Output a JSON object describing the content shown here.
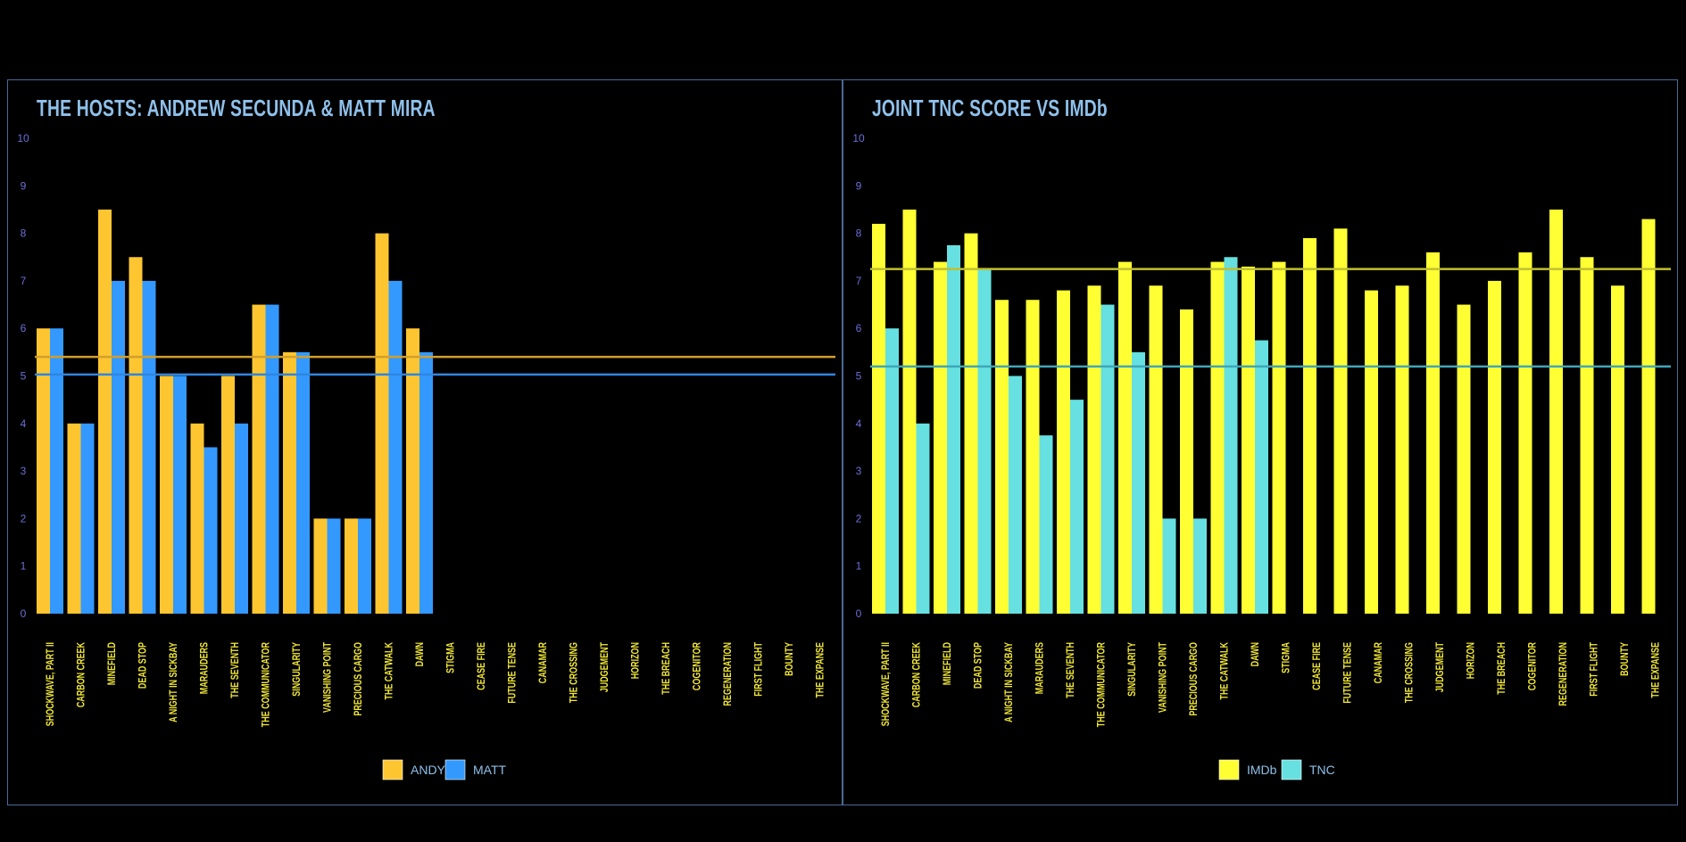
{
  "chart_data": [
    {
      "type": "bar",
      "title": "THE HOSTS: ANDREW SECUNDA & MATT MIRA",
      "categories": [
        "SHOCKWAVE, PART II",
        "CARBON CREEK",
        "MINEFIELD",
        "DEAD STOP",
        "A NIGHT IN SICKBAY",
        "MARAUDERS",
        "THE SEVENTH",
        "THE COMMUNICATOR",
        "SINGULARITY",
        "VANISHING POINT",
        "PRECIOUS CARGO",
        "THE CATWALK",
        "DAWN",
        "STIGMA",
        "CEASE FIRE",
        "FUTURE TENSE",
        "CANAMAR",
        "THE CROSSING",
        "JUDGEMENT",
        "HORIZON",
        "THE BREACH",
        "COGENITOR",
        "REGENERATION",
        "FIRST FLIGHT",
        "BOUNTY",
        "THE EXPANSE"
      ],
      "yticks": [
        "0",
        "1",
        "2",
        "3",
        "4",
        "5",
        "6",
        "7",
        "8",
        "9",
        "10"
      ],
      "ylim": [
        0,
        10
      ],
      "series": [
        {
          "name": "ANDY",
          "color": "#fdc631",
          "values": [
            6,
            4,
            8.5,
            7.5,
            5,
            4,
            5,
            6.5,
            5.5,
            2,
            2,
            8,
            6,
            null,
            null,
            null,
            null,
            null,
            null,
            null,
            null,
            null,
            null,
            null,
            null,
            null
          ]
        },
        {
          "name": "MATT",
          "color": "#3399ff",
          "values": [
            6,
            4,
            7,
            7,
            5,
            3.5,
            4,
            6.5,
            5.5,
            2,
            2,
            7,
            5.5,
            null,
            null,
            null,
            null,
            null,
            null,
            null,
            null,
            null,
            null,
            null,
            null,
            null
          ]
        }
      ],
      "reference_lines": [
        {
          "series": "ANDY",
          "value": 5.4,
          "color": "#d29e2a"
        },
        {
          "series": "MATT",
          "value": 5.03,
          "color": "#2f86e0"
        }
      ]
    },
    {
      "type": "bar",
      "title": "JOINT TNC SCORE VS IMDb",
      "categories": [
        "SHOCKWAVE, PART II",
        "CARBON CREEK",
        "MINEFIELD",
        "DEAD STOP",
        "A NIGHT IN SICKBAY",
        "MARAUDERS",
        "THE SEVENTH",
        "THE COMMUNICATOR",
        "SINGULARITY",
        "VANISHING POINT",
        "PRECIOUS CARGO",
        "THE CATWALK",
        "DAWN",
        "STIGMA",
        "CEASE FIRE",
        "FUTURE TENSE",
        "CANAMAR",
        "THE CROSSING",
        "JUDGEMENT",
        "HORIZON",
        "THE BREACH",
        "COGENITOR",
        "REGENERATION",
        "FIRST FLIGHT",
        "BOUNTY",
        "THE EXPANSE"
      ],
      "yticks": [
        "0",
        "1",
        "2",
        "3",
        "4",
        "5",
        "6",
        "7",
        "8",
        "9",
        "10"
      ],
      "ylim": [
        0,
        10
      ],
      "series": [
        {
          "name": "IMDb",
          "color": "#ffff33",
          "values": [
            8.2,
            8.5,
            7.4,
            8,
            6.6,
            6.6,
            6.8,
            6.9,
            7.4,
            6.9,
            6.4,
            7.4,
            7.3,
            7.4,
            7.9,
            8.1,
            6.8,
            6.9,
            7.6,
            6.5,
            7,
            7.6,
            8.5,
            7.5,
            6.9,
            8.3
          ]
        },
        {
          "name": "TNC",
          "color": "#66e0e0",
          "values": [
            6,
            4,
            7.75,
            7.25,
            5,
            3.75,
            4.5,
            6.5,
            5.5,
            2,
            2,
            7.5,
            5.75,
            null,
            null,
            null,
            null,
            null,
            null,
            null,
            null,
            null,
            null,
            null,
            null,
            null
          ]
        }
      ],
      "reference_lines": [
        {
          "series": "IMDb",
          "value": 7.25,
          "color": "#c0c030"
        },
        {
          "series": "TNC",
          "value": 5.2,
          "color": "#3fa6b8"
        }
      ]
    }
  ]
}
